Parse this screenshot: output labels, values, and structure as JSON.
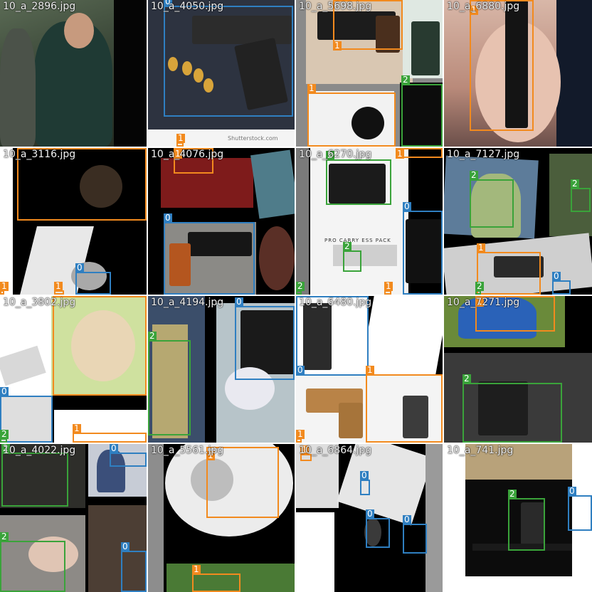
{
  "mosaic": {
    "tiles": [
      {
        "filename": "10_a_2896.jpg"
      },
      {
        "filename": "10_a_4050.jpg"
      },
      {
        "filename": "10_a_5698.jpg"
      },
      {
        "filename": "10_a_6880.jpg"
      },
      {
        "filename": "10_a_3116.jpg"
      },
      {
        "filename": "10_a_4076.jpg"
      },
      {
        "filename": "10_a_6270.jpg"
      },
      {
        "filename": "10_a_7127.jpg"
      },
      {
        "filename": "10_a_3802.jpg"
      },
      {
        "filename": "10_a_4194.jpg"
      },
      {
        "filename": "10_a_6480.jpg"
      },
      {
        "filename": "10_a_7271.jpg"
      },
      {
        "filename": "10_a_4022.jpg"
      },
      {
        "filename": "10_a_5561.jpg"
      },
      {
        "filename": "10_a_6864.jpg"
      },
      {
        "filename": "10_a_741.jpg"
      }
    ],
    "class_labels": {
      "zero": "0",
      "one": "1",
      "two": "2"
    },
    "class_colors": {
      "0": "#2f7fc1",
      "1": "#f28a1e",
      "2": "#3aa33a"
    },
    "image_texts": {
      "holster_pack": "PRO CARRY ESS PACK",
      "watermark": "Shutterstock.com"
    }
  }
}
